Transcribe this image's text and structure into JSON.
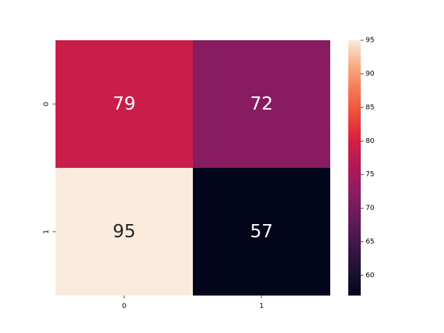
{
  "chart_data": {
    "type": "heatmap",
    "title": "",
    "xlabel": "",
    "ylabel": "",
    "x_categories": [
      "0",
      "1"
    ],
    "y_categories": [
      "0",
      "1"
    ],
    "values": [
      [
        79,
        72
      ],
      [
        95,
        57
      ]
    ],
    "colormap": "rocket",
    "colorbar": {
      "min": 57,
      "max": 95,
      "ticks": [
        60,
        65,
        70,
        75,
        80,
        85,
        90,
        95
      ],
      "tick_labels": [
        "60",
        "65",
        "70",
        "75",
        "80",
        "85",
        "90",
        "95"
      ]
    },
    "annotations": true,
    "grid": false
  }
}
